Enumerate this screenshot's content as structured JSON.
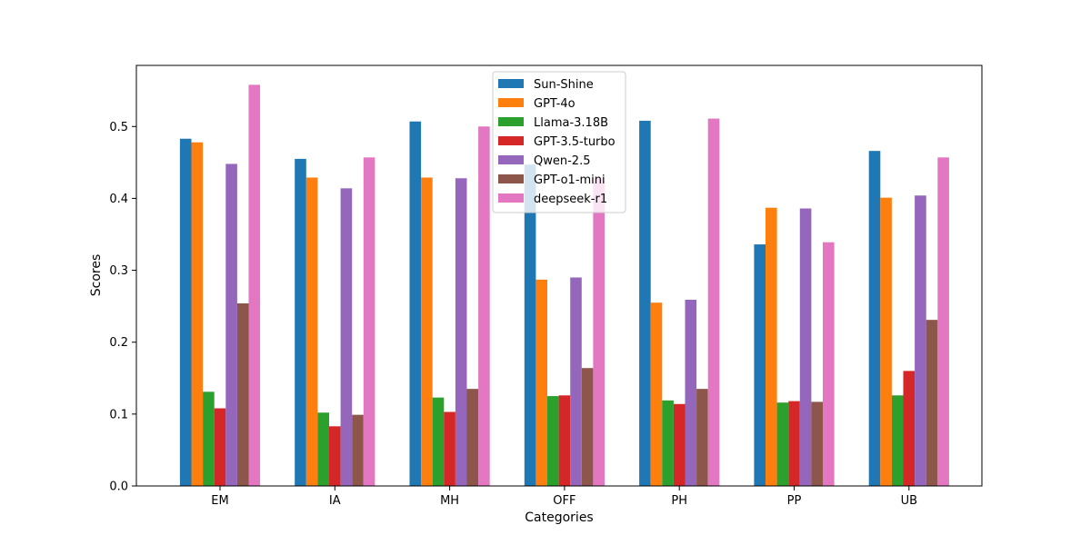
{
  "chart_data": {
    "type": "bar",
    "title": "",
    "xlabel": "Categories",
    "ylabel": "Scores",
    "ylim": [
      0,
      0.585
    ],
    "yticks": [
      "0.0",
      "0.1",
      "0.2",
      "0.3",
      "0.4",
      "0.5"
    ],
    "categories": [
      "EM",
      "IA",
      "MH",
      "OFF",
      "PH",
      "PP",
      "UB"
    ],
    "legend_position": "top-center",
    "grid": false,
    "series": [
      {
        "name": "Sun-Shine",
        "color": "#1f77b4",
        "values": [
          0.483,
          0.455,
          0.507,
          0.447,
          0.508,
          0.336,
          0.466
        ]
      },
      {
        "name": "GPT-4o",
        "color": "#ff7f0e",
        "values": [
          0.478,
          0.429,
          0.429,
          0.287,
          0.255,
          0.387,
          0.401
        ]
      },
      {
        "name": "Llama-3.18B",
        "color": "#2ca02c",
        "values": [
          0.131,
          0.102,
          0.123,
          0.125,
          0.119,
          0.116,
          0.126
        ]
      },
      {
        "name": "GPT-3.5-turbo",
        "color": "#d62728",
        "values": [
          0.108,
          0.083,
          0.103,
          0.126,
          0.114,
          0.118,
          0.16
        ]
      },
      {
        "name": "Qwen-2.5",
        "color": "#9467bd",
        "values": [
          0.448,
          0.414,
          0.428,
          0.29,
          0.259,
          0.386,
          0.404
        ]
      },
      {
        "name": "GPT-o1-mini",
        "color": "#8c564b",
        "values": [
          0.254,
          0.099,
          0.135,
          0.164,
          0.135,
          0.117,
          0.231
        ]
      },
      {
        "name": "deepseek-r1",
        "color": "#e377c2",
        "values": [
          0.558,
          0.457,
          0.5,
          0.428,
          0.511,
          0.339,
          0.457
        ]
      }
    ]
  }
}
